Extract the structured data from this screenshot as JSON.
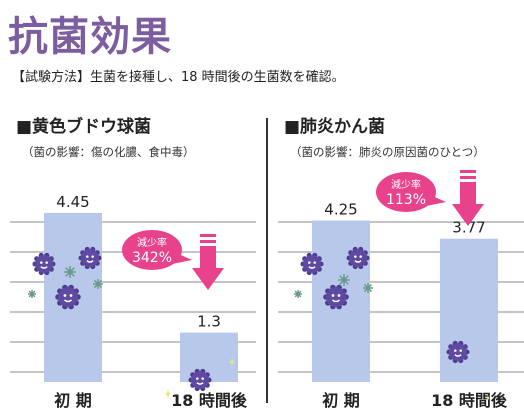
{
  "page": {
    "title": "抗菌効果",
    "method": "【試験方法】生菌を接種し、18 時間後の生菌数を確認。"
  },
  "colors": {
    "bar": "#b7c8ea",
    "arrow": "#e8428c",
    "bubble": "#e8428c",
    "title": "#7b5da0"
  },
  "chart_data": [
    {
      "type": "bar",
      "title": "■黄色ブドウ球菌",
      "subtitle": "（菌の影響：傷の化膿、食中毒）",
      "categories": [
        "初 期",
        "18 時間後"
      ],
      "values": [
        4.45,
        1.3
      ],
      "value_labels": [
        "4.45",
        "1.3"
      ],
      "reduction_label": "減少率",
      "reduction_value": "342%",
      "ylim": [
        0,
        5
      ]
    },
    {
      "type": "bar",
      "title": "■肺炎かん菌",
      "subtitle": "（菌の影響：肺炎の原因菌のひとつ）",
      "categories": [
        "初 期",
        "18 時間後"
      ],
      "values": [
        4.25,
        3.77
      ],
      "value_labels": [
        "4.25",
        "3.77"
      ],
      "reduction_label": "減少率",
      "reduction_value": "113%",
      "ylim": [
        0,
        5
      ]
    }
  ]
}
